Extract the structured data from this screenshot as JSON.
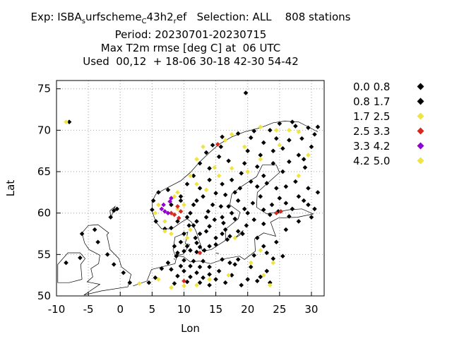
{
  "title": {
    "exp_prefix": "Exp: ISBA",
    "exp_sub1": "s",
    "exp_mid": "urfscheme",
    "exp_sub2": "C",
    "exp_mid2": "43h2",
    "exp_sub3": "r",
    "exp_suffix": "ef   Selection: ALL    808 stations",
    "period": "Period: 20230701-20230715",
    "metric": "Max T2m rmse [deg C] at  06 UTC",
    "used": "Used  00,12  + 18-06 30-18 42-30 54-42"
  },
  "colors": {
    "black": "#000000",
    "yellow": "#f0e442",
    "red": "#d52b1e",
    "purple": "#9400d3",
    "grid": "#a0a0a0",
    "coast": "#000000"
  },
  "legend": [
    {
      "label": "0.0 0.8",
      "color": "#000000"
    },
    {
      "label": "0.8 1.7",
      "color": "#000000"
    },
    {
      "label": "1.7 2.5",
      "color": "#f0e442"
    },
    {
      "label": "2.5 3.3",
      "color": "#d52b1e"
    },
    {
      "label": "3.3 4.2",
      "color": "#9400d3"
    },
    {
      "label": "4.2 5.0",
      "color": "#f0e442"
    }
  ],
  "chart_data": {
    "type": "scatter",
    "xlabel": "Lon",
    "ylabel": "Lat",
    "xlim": [
      -10,
      32
    ],
    "ylim": [
      50,
      76
    ],
    "xticks": [
      -10,
      -5,
      0,
      5,
      10,
      15,
      20,
      25,
      30
    ],
    "yticks": [
      50,
      55,
      60,
      65,
      70,
      75
    ],
    "grid": true,
    "legend_position": "outside-right",
    "series": [
      {
        "name": "0.0 0.8",
        "color": "#000000",
        "points": [
          [
            19.7,
            74.5
          ],
          [
            25.0,
            70.8
          ],
          [
            27.5,
            70.5
          ],
          [
            29.5,
            70.3
          ],
          [
            31.0,
            70.4
          ],
          [
            23.5,
            70.0
          ],
          [
            21.0,
            69.9
          ],
          [
            18.5,
            69.6
          ],
          [
            16.0,
            69.2
          ],
          [
            14.5,
            68.2
          ],
          [
            22.5,
            68.5
          ],
          [
            26.5,
            68.8
          ],
          [
            28.5,
            69.0
          ],
          [
            13.5,
            67.3
          ],
          [
            15.5,
            66.8
          ],
          [
            20.0,
            67.5
          ],
          [
            24.0,
            67.5
          ],
          [
            28.0,
            67.0
          ],
          [
            12.5,
            66.0
          ],
          [
            14.0,
            65.4
          ],
          [
            21.5,
            65.6
          ],
          [
            25.5,
            65.0
          ],
          [
            29.0,
            65.5
          ],
          [
            11.5,
            64.5
          ],
          [
            17.5,
            64.0
          ],
          [
            20.5,
            63.8
          ],
          [
            23.0,
            63.6
          ],
          [
            26.0,
            63.2
          ],
          [
            29.5,
            63.0
          ],
          [
            10.5,
            63.5
          ],
          [
            12.5,
            63.0
          ],
          [
            15.0,
            62.4
          ],
          [
            18.0,
            62.5
          ],
          [
            22.0,
            62.0
          ],
          [
            25.0,
            61.8
          ],
          [
            28.0,
            62.0
          ],
          [
            31.0,
            62.5
          ],
          [
            9.5,
            62.0
          ],
          [
            12.0,
            61.5
          ],
          [
            14.5,
            61.0
          ],
          [
            17.0,
            60.8
          ],
          [
            19.5,
            60.5
          ],
          [
            22.5,
            60.4
          ],
          [
            24.8,
            60.2
          ],
          [
            27.0,
            60.5
          ],
          [
            29.5,
            61.0
          ],
          [
            11.0,
            60.0
          ],
          [
            13.5,
            59.5
          ],
          [
            16.0,
            59.5
          ],
          [
            18.0,
            59.3
          ],
          [
            21.0,
            59.2
          ],
          [
            23.5,
            59.8
          ],
          [
            26.5,
            59.6
          ],
          [
            11.5,
            58.5
          ],
          [
            14.0,
            58.4
          ],
          [
            16.5,
            58.0
          ],
          [
            18.5,
            57.8
          ],
          [
            12.5,
            57.5
          ],
          [
            15.0,
            57.0
          ],
          [
            16.8,
            56.8
          ],
          [
            12.0,
            56.4
          ],
          [
            14.0,
            56.0
          ],
          [
            10.0,
            57.5
          ],
          [
            9.5,
            56.5
          ],
          [
            8.5,
            56.0
          ],
          [
            10.5,
            56.0
          ],
          [
            9.0,
            55.2
          ],
          [
            10.0,
            55.4
          ],
          [
            11.0,
            55.5
          ],
          [
            12.0,
            55.3
          ],
          [
            12.5,
            55.9
          ],
          [
            8.8,
            54.8
          ],
          [
            10.0,
            54.3
          ],
          [
            11.5,
            54.2
          ],
          [
            13.0,
            54.2
          ],
          [
            9.5,
            53.6
          ],
          [
            11.0,
            53.6
          ],
          [
            12.5,
            53.5
          ],
          [
            14.0,
            53.5
          ],
          [
            8.0,
            53.2
          ],
          [
            10.0,
            53.0
          ],
          [
            12.0,
            52.8
          ],
          [
            14.0,
            52.6
          ],
          [
            9.0,
            52.4
          ],
          [
            11.0,
            52.3
          ],
          [
            13.0,
            52.2
          ],
          [
            15.0,
            52.0
          ],
          [
            8.5,
            51.5
          ],
          [
            10.5,
            51.7
          ],
          [
            12.5,
            51.6
          ],
          [
            14.0,
            51.3
          ],
          [
            17.5,
            52.5
          ],
          [
            20.0,
            52.0
          ],
          [
            22.0,
            52.3
          ],
          [
            16.0,
            54.4
          ],
          [
            18.5,
            54.4
          ],
          [
            21.0,
            54.9
          ],
          [
            24.0,
            54.5
          ],
          [
            22.5,
            56.0
          ],
          [
            24.5,
            56.5
          ],
          [
            21.5,
            57.0
          ],
          [
            26.0,
            58.0
          ],
          [
            28.0,
            59.0
          ],
          [
            30.0,
            59.5
          ],
          [
            7.5,
            54.0
          ],
          [
            6.5,
            53.3
          ],
          [
            5.5,
            52.2
          ],
          [
            4.5,
            51.6
          ],
          [
            1.5,
            51.6
          ],
          [
            0.5,
            52.8
          ],
          [
            -1.0,
            53.8
          ],
          [
            -2.0,
            55.0
          ],
          [
            -3.5,
            56.5
          ],
          [
            -6.0,
            57.5
          ],
          [
            -4.0,
            58.0
          ],
          [
            -6.3,
            54.6
          ],
          [
            -8.5,
            54.0
          ],
          [
            -0.5,
            60.5
          ],
          [
            -1.5,
            59.5
          ],
          [
            -1.0,
            60.3
          ],
          [
            -8.0,
            71.0
          ],
          [
            7.5,
            62.8
          ],
          [
            6.0,
            62.5
          ],
          [
            5.2,
            61.5
          ],
          [
            5.0,
            60.4
          ],
          [
            5.6,
            59.0
          ],
          [
            7.0,
            58.1
          ],
          [
            8.0,
            58.2
          ],
          [
            9.0,
            59.0
          ],
          [
            10.5,
            59.5
          ],
          [
            9.5,
            61.5
          ],
          [
            8.0,
            61.0
          ],
          [
            11.5,
            61.0
          ],
          [
            14.0,
            64.0
          ],
          [
            16.0,
            63.5
          ],
          [
            19.0,
            64.8
          ],
          [
            22.5,
            64.5
          ],
          [
            24.0,
            66.0
          ],
          [
            26.5,
            66.2
          ],
          [
            30.0,
            68.0
          ],
          [
            27.0,
            71.0
          ],
          [
            30.5,
            69.5
          ],
          [
            24.5,
            69.0
          ],
          [
            20.5,
            69.1
          ],
          [
            15.8,
            68.0
          ],
          [
            17.0,
            66.3
          ],
          [
            19.5,
            66.0
          ],
          [
            22.0,
            67.0
          ],
          [
            25.5,
            67.8
          ],
          [
            28.8,
            66.5
          ],
          [
            13.0,
            62.0
          ],
          [
            15.8,
            60.8
          ],
          [
            18.5,
            61.5
          ],
          [
            20.8,
            61.2
          ],
          [
            23.8,
            61.0
          ],
          [
            26.0,
            61.2
          ],
          [
            28.8,
            61.5
          ],
          [
            30.5,
            60.5
          ],
          [
            27.5,
            63.8
          ],
          [
            24.5,
            63.0
          ],
          [
            21.5,
            63.2
          ],
          [
            18.8,
            63.0
          ],
          [
            16.5,
            62.2
          ],
          [
            13.8,
            60.2
          ],
          [
            16.2,
            58.8
          ],
          [
            19.8,
            58.5
          ],
          [
            22.5,
            58.7
          ],
          [
            15.0,
            56.2
          ],
          [
            13.2,
            55.5
          ],
          [
            10.8,
            58.5
          ],
          [
            17.5,
            60.0
          ],
          [
            20.0,
            60.0
          ],
          [
            12.0,
            59.0
          ],
          [
            14.8,
            59.2
          ],
          [
            11.8,
            57.0
          ],
          [
            13.5,
            57.8
          ],
          [
            17.2,
            57.2
          ],
          [
            19.2,
            57.5
          ],
          [
            16.0,
            57.5
          ],
          [
            23.0,
            55.2
          ],
          [
            25.5,
            54.8
          ],
          [
            18.0,
            53.8
          ],
          [
            20.5,
            53.5
          ],
          [
            23.0,
            53.0
          ],
          [
            16.5,
            51.6
          ],
          [
            19.0,
            51.3
          ],
          [
            21.5,
            51.8
          ],
          [
            23.5,
            51.6
          ],
          [
            15.5,
            53.0
          ],
          [
            17.2,
            54.0
          ]
        ]
      },
      {
        "name": "1.7 2.5",
        "color": "#f0e442",
        "points": [
          [
            -8.5,
            71.0
          ],
          [
            22.0,
            70.4
          ],
          [
            24.5,
            70.0
          ],
          [
            28.0,
            69.8
          ],
          [
            17.5,
            69.5
          ],
          [
            13.0,
            68.0
          ],
          [
            19.5,
            68.0
          ],
          [
            25.0,
            68.2
          ],
          [
            12.0,
            66.5
          ],
          [
            11.0,
            64.5
          ],
          [
            20.0,
            65.0
          ],
          [
            28.0,
            64.5
          ],
          [
            22.0,
            66.5
          ],
          [
            14.8,
            65.5
          ],
          [
            17.5,
            65.4
          ],
          [
            9.0,
            62.5
          ],
          [
            6.0,
            61.0
          ],
          [
            5.5,
            60.0
          ],
          [
            7.0,
            59.0
          ],
          [
            9.0,
            60.5
          ],
          [
            10.0,
            61.0
          ],
          [
            8.5,
            62.0
          ],
          [
            12.0,
            63.5
          ],
          [
            13.5,
            62.8
          ],
          [
            15.5,
            64.5
          ],
          [
            7.0,
            57.8
          ],
          [
            8.0,
            57.5
          ],
          [
            10.5,
            57.0
          ],
          [
            22.0,
            55.5
          ],
          [
            24.0,
            54.0
          ],
          [
            22.5,
            52.5
          ],
          [
            17.0,
            52.5
          ],
          [
            8.0,
            51.0
          ],
          [
            10.0,
            51.2
          ],
          [
            12.0,
            51.3
          ],
          [
            14.0,
            52.0
          ],
          [
            6.0,
            52.0
          ],
          [
            3.0,
            51.5
          ],
          [
            20.5,
            54.0
          ],
          [
            23.5,
            51.3
          ],
          [
            29.5,
            67.0
          ],
          [
            26.5,
            70.0
          ],
          [
            18.0,
            57.0
          ],
          [
            11.0,
            58.0
          ],
          [
            16.5,
            68.8
          ]
        ]
      },
      {
        "name": "2.5 3.3",
        "color": "#d52b1e",
        "points": [
          [
            15.3,
            68.3
          ],
          [
            8.0,
            60.0
          ],
          [
            9.0,
            60.8
          ],
          [
            9.5,
            60.2
          ],
          [
            8.5,
            59.8
          ],
          [
            9.2,
            59.4
          ],
          [
            24.5,
            60.0
          ],
          [
            25.2,
            60.2
          ],
          [
            12.5,
            55.2
          ],
          [
            10.0,
            51.8
          ]
        ]
      },
      {
        "name": "3.3 4.2",
        "color": "#9400d3",
        "points": [
          [
            6.5,
            60.5
          ],
          [
            7.0,
            60.2
          ],
          [
            7.5,
            60.0
          ],
          [
            8.0,
            61.8
          ],
          [
            7.8,
            61.4
          ],
          [
            6.8,
            61.0
          ]
        ]
      }
    ]
  }
}
